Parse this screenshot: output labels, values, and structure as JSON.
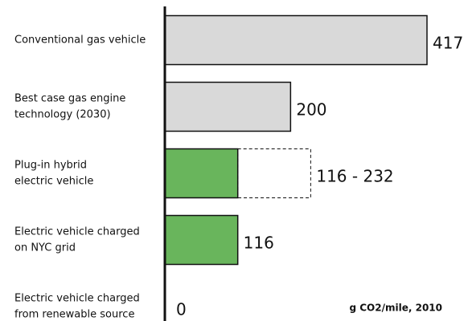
{
  "chart_data": {
    "type": "hbar",
    "categories": [
      [
        "Conventional gas vehicle"
      ],
      [
        "Best case gas engine",
        "technology (2030)"
      ],
      [
        "Plug-in hybrid",
        "electric vehicle"
      ],
      [
        "Electric vehicle charged",
        "on NYC grid"
      ],
      [
        "Electric vehicle charged",
        "from renewable source"
      ]
    ],
    "values": [
      417,
      200,
      116,
      116,
      0
    ],
    "highs": [
      null,
      null,
      232,
      null,
      null
    ],
    "value_labels": [
      "417",
      "200",
      "116 - 232",
      "116",
      "0"
    ],
    "colors": [
      "#d9d9d9",
      "#d9d9d9",
      "#69b55c",
      "#69b55c",
      "#69b55c"
    ],
    "xlim": [
      0,
      417
    ],
    "annotation": "g CO2/mile, 2010"
  }
}
